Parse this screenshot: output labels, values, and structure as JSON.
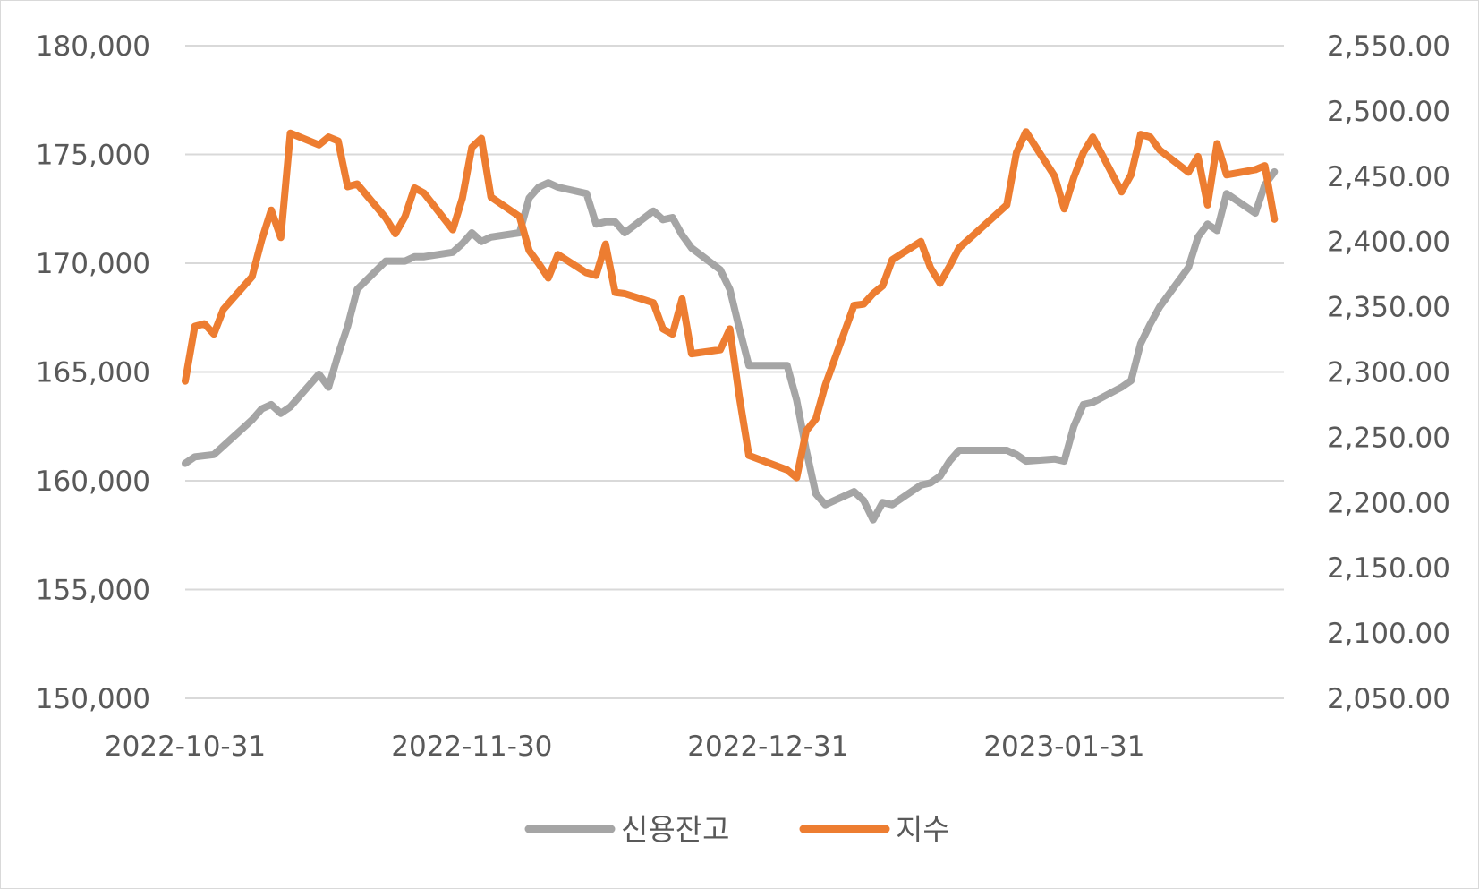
{
  "chart_data": {
    "type": "line",
    "title": "",
    "xlabel": "",
    "ylabel": "",
    "y_left": {
      "range": [
        150000,
        180000
      ],
      "ticks": [
        150000,
        155000,
        160000,
        165000,
        170000,
        175000,
        180000
      ],
      "tick_labels": [
        "150,000",
        "155,000",
        "160,000",
        "165,000",
        "170,000",
        "175,000",
        "180,000"
      ]
    },
    "y_right": {
      "range": [
        2050,
        2550
      ],
      "ticks": [
        2050,
        2100,
        2150,
        2200,
        2250,
        2300,
        2350,
        2400,
        2450,
        2500,
        2550
      ],
      "tick_labels": [
        "2,050.00",
        "2,100.00",
        "2,150.00",
        "2,200.00",
        "2,250.00",
        "2,300.00",
        "2,350.00",
        "2,400.00",
        "2,450.00",
        "2,500.00",
        "2,550.00"
      ]
    },
    "x_range": [
      "2022-10-31",
      "2023-02-23"
    ],
    "x_ticks": [
      "2022-10-31",
      "2022-11-30",
      "2022-12-31",
      "2023-01-31"
    ],
    "grid": true,
    "legend_position": "bottom",
    "series": [
      {
        "name": "신용잔고",
        "axis": "left",
        "color": "#a5a5a5",
        "points": [
          [
            "2022-10-31",
            160800
          ],
          [
            "2022-11-01",
            161100
          ],
          [
            "2022-11-03",
            161200
          ],
          [
            "2022-11-04",
            161600
          ],
          [
            "2022-11-05",
            162000
          ],
          [
            "2022-11-06",
            162400
          ],
          [
            "2022-11-07",
            162800
          ],
          [
            "2022-11-08",
            163300
          ],
          [
            "2022-11-09",
            163500
          ],
          [
            "2022-11-10",
            163100
          ],
          [
            "2022-11-11",
            163400
          ],
          [
            "2022-11-14",
            164900
          ],
          [
            "2022-11-15",
            164300
          ],
          [
            "2022-11-16",
            165800
          ],
          [
            "2022-11-17",
            167100
          ],
          [
            "2022-11-18",
            168800
          ],
          [
            "2022-11-21",
            170100
          ],
          [
            "2022-11-22",
            170100
          ],
          [
            "2022-11-23",
            170100
          ],
          [
            "2022-11-24",
            170300
          ],
          [
            "2022-11-25",
            170300
          ],
          [
            "2022-11-28",
            170500
          ],
          [
            "2022-11-29",
            170900
          ],
          [
            "2022-11-30",
            171400
          ],
          [
            "2022-12-01",
            171000
          ],
          [
            "2022-12-02",
            171200
          ],
          [
            "2022-12-05",
            171400
          ],
          [
            "2022-12-06",
            173000
          ],
          [
            "2022-12-07",
            173500
          ],
          [
            "2022-12-08",
            173700
          ],
          [
            "2022-12-09",
            173500
          ],
          [
            "2022-12-12",
            173200
          ],
          [
            "2022-12-13",
            171800
          ],
          [
            "2022-12-14",
            171900
          ],
          [
            "2022-12-15",
            171900
          ],
          [
            "2022-12-16",
            171400
          ],
          [
            "2022-12-19",
            172400
          ],
          [
            "2022-12-20",
            172000
          ],
          [
            "2022-12-21",
            172100
          ],
          [
            "2022-12-22",
            171300
          ],
          [
            "2022-12-23",
            170700
          ],
          [
            "2022-12-26",
            169700
          ],
          [
            "2022-12-27",
            168800
          ],
          [
            "2022-12-28",
            167000
          ],
          [
            "2022-12-29",
            165300
          ],
          [
            "2023-01-02",
            165300
          ],
          [
            "2023-01-03",
            163700
          ],
          [
            "2023-01-04",
            161400
          ],
          [
            "2023-01-05",
            159400
          ],
          [
            "2023-01-06",
            158900
          ],
          [
            "2023-01-09",
            159500
          ],
          [
            "2023-01-10",
            159100
          ],
          [
            "2023-01-11",
            158200
          ],
          [
            "2023-01-12",
            159000
          ],
          [
            "2023-01-13",
            158900
          ],
          [
            "2023-01-16",
            159800
          ],
          [
            "2023-01-17",
            159900
          ],
          [
            "2023-01-18",
            160200
          ],
          [
            "2023-01-19",
            160900
          ],
          [
            "2023-01-20",
            161400
          ],
          [
            "2023-01-25",
            161400
          ],
          [
            "2023-01-26",
            161200
          ],
          [
            "2023-01-27",
            160900
          ],
          [
            "2023-01-30",
            161000
          ],
          [
            "2023-01-31",
            160900
          ],
          [
            "2023-02-01",
            162500
          ],
          [
            "2023-02-02",
            163500
          ],
          [
            "2023-02-03",
            163600
          ],
          [
            "2023-02-06",
            164300
          ],
          [
            "2023-02-07",
            164600
          ],
          [
            "2023-02-08",
            166300
          ],
          [
            "2023-02-09",
            167200
          ],
          [
            "2023-02-10",
            168000
          ],
          [
            "2023-02-13",
            169800
          ],
          [
            "2023-02-14",
            171200
          ],
          [
            "2023-02-15",
            171800
          ],
          [
            "2023-02-16",
            171500
          ],
          [
            "2023-02-17",
            173200
          ],
          [
            "2023-02-20",
            172300
          ],
          [
            "2023-02-21",
            173600
          ],
          [
            "2023-02-22",
            174200
          ]
        ]
      },
      {
        "name": "지수",
        "axis": "right",
        "color": "#ed7d31",
        "points": [
          [
            "2022-10-31",
            2293
          ],
          [
            "2022-11-01",
            2335
          ],
          [
            "2022-11-02",
            2337
          ],
          [
            "2022-11-03",
            2329
          ],
          [
            "2022-11-04",
            2348
          ],
          [
            "2022-11-07",
            2373
          ],
          [
            "2022-11-08",
            2401
          ],
          [
            "2022-11-09",
            2424
          ],
          [
            "2022-11-10",
            2403
          ],
          [
            "2022-11-11",
            2483
          ],
          [
            "2022-11-14",
            2474
          ],
          [
            "2022-11-15",
            2480
          ],
          [
            "2022-11-16",
            2477
          ],
          [
            "2022-11-17",
            2442
          ],
          [
            "2022-11-18",
            2444
          ],
          [
            "2022-11-21",
            2418
          ],
          [
            "2022-11-22",
            2406
          ],
          [
            "2022-11-23",
            2419
          ],
          [
            "2022-11-24",
            2441
          ],
          [
            "2022-11-25",
            2437
          ],
          [
            "2022-11-28",
            2409
          ],
          [
            "2022-11-29",
            2433
          ],
          [
            "2022-11-30",
            2472
          ],
          [
            "2022-12-01",
            2479
          ],
          [
            "2022-12-02",
            2434
          ],
          [
            "2022-12-05",
            2419
          ],
          [
            "2022-12-06",
            2393
          ],
          [
            "2022-12-07",
            2383
          ],
          [
            "2022-12-08",
            2372
          ],
          [
            "2022-12-09",
            2390
          ],
          [
            "2022-12-12",
            2376
          ],
          [
            "2022-12-13",
            2374
          ],
          [
            "2022-12-14",
            2398
          ],
          [
            "2022-12-15",
            2361
          ],
          [
            "2022-12-16",
            2360
          ],
          [
            "2022-12-19",
            2353
          ],
          [
            "2022-12-20",
            2333
          ],
          [
            "2022-12-21",
            2329
          ],
          [
            "2022-12-22",
            2356
          ],
          [
            "2022-12-23",
            2314
          ],
          [
            "2022-12-26",
            2317
          ],
          [
            "2022-12-27",
            2333
          ],
          [
            "2022-12-28",
            2281
          ],
          [
            "2022-12-29",
            2236
          ],
          [
            "2023-01-02",
            2225
          ],
          [
            "2023-01-03",
            2219
          ],
          [
            "2023-01-04",
            2255
          ],
          [
            "2023-01-05",
            2264
          ],
          [
            "2023-01-06",
            2290
          ],
          [
            "2023-01-09",
            2351
          ],
          [
            "2023-01-10",
            2352
          ],
          [
            "2023-01-11",
            2360
          ],
          [
            "2023-01-12",
            2366
          ],
          [
            "2023-01-13",
            2386
          ],
          [
            "2023-01-16",
            2400
          ],
          [
            "2023-01-17",
            2380
          ],
          [
            "2023-01-18",
            2368
          ],
          [
            "2023-01-19",
            2381
          ],
          [
            "2023-01-20",
            2395
          ],
          [
            "2023-01-25",
            2428
          ],
          [
            "2023-01-26",
            2468
          ],
          [
            "2023-01-27",
            2484
          ],
          [
            "2023-01-30",
            2450
          ],
          [
            "2023-01-31",
            2425
          ],
          [
            "2023-02-01",
            2449
          ],
          [
            "2023-02-02",
            2468
          ],
          [
            "2023-02-03",
            2480
          ],
          [
            "2023-02-06",
            2438
          ],
          [
            "2023-02-07",
            2451
          ],
          [
            "2023-02-08",
            2482
          ],
          [
            "2023-02-09",
            2480
          ],
          [
            "2023-02-10",
            2470
          ],
          [
            "2023-02-13",
            2453
          ],
          [
            "2023-02-14",
            2465
          ],
          [
            "2023-02-15",
            2428
          ],
          [
            "2023-02-16",
            2475
          ],
          [
            "2023-02-17",
            2451
          ],
          [
            "2023-02-20",
            2455
          ],
          [
            "2023-02-21",
            2458
          ],
          [
            "2023-02-22",
            2417
          ]
        ]
      }
    ]
  }
}
